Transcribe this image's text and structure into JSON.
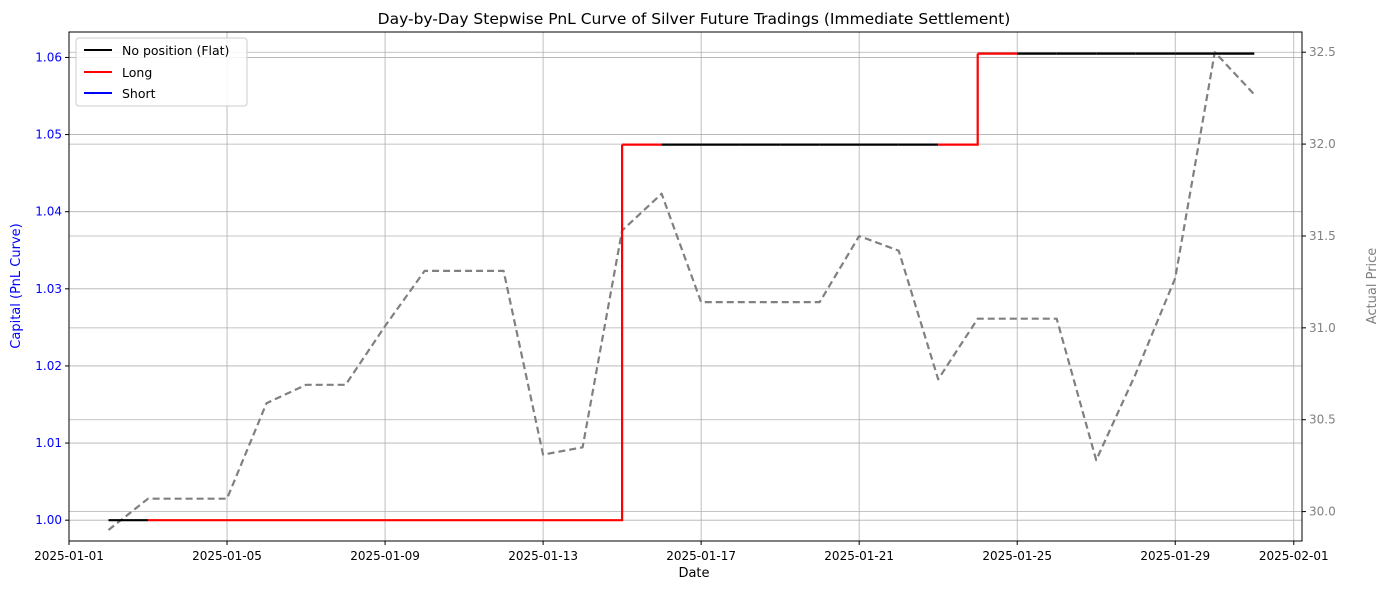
{
  "chart_data": {
    "type": "line",
    "title": "Day-by-Day Stepwise PnL Curve of Silver Future Tradings (Immediate Settlement)",
    "xlabel": "Date",
    "ylabel_left": "Capital (PnL Curve)",
    "ylabel_right": "Actual Price",
    "x_ticks": [
      "2025-01-01",
      "2025-01-05",
      "2025-01-09",
      "2025-01-13",
      "2025-01-17",
      "2025-01-21",
      "2025-01-25",
      "2025-01-29",
      "2025-02-01"
    ],
    "y_left_ticks": [
      1.0,
      1.01,
      1.02,
      1.03,
      1.04,
      1.05,
      1.06
    ],
    "y_left_tick_labels": [
      "1.00",
      "1.01",
      "1.02",
      "1.03",
      "1.04",
      "1.05",
      "1.06"
    ],
    "y_right_ticks": [
      30.0,
      30.5,
      31.0,
      31.5,
      32.0,
      32.5
    ],
    "y_right_tick_labels": [
      "30.0",
      "30.5",
      "31.0",
      "31.5",
      "32.0",
      "32.5"
    ],
    "x_range": [
      "2025-01-01T00:00",
      "2025-02-01T05:00"
    ],
    "ylim_left": [
      0.9973,
      1.0633
    ],
    "ylim_right": [
      29.84,
      32.61
    ],
    "grid": true,
    "legend_position": "top-left",
    "legend": [
      {
        "label": "No position (Flat)",
        "color": "#000000"
      },
      {
        "label": "Long",
        "color": "#ff0000"
      },
      {
        "label": "Short",
        "color": "#0000ff"
      }
    ],
    "left_axis_color": "#0000ff",
    "right_axis_color": "#808080",
    "pnl_dates": [
      "2025-01-02",
      "2025-01-03",
      "2025-01-04",
      "2025-01-05",
      "2025-01-06",
      "2025-01-07",
      "2025-01-08",
      "2025-01-09",
      "2025-01-10",
      "2025-01-11",
      "2025-01-12",
      "2025-01-13",
      "2025-01-14",
      "2025-01-15",
      "2025-01-16",
      "2025-01-17",
      "2025-01-18",
      "2025-01-19",
      "2025-01-20",
      "2025-01-21",
      "2025-01-22",
      "2025-01-23",
      "2025-01-24",
      "2025-01-25",
      "2025-01-26",
      "2025-01-27",
      "2025-01-28",
      "2025-01-29",
      "2025-01-30",
      "2025-01-31"
    ],
    "pnl_values": [
      1.0,
      1.0,
      1.0,
      1.0,
      1.0,
      1.0,
      1.0,
      1.0,
      1.0,
      1.0,
      1.0,
      1.0,
      1.0,
      1.0487,
      1.0487,
      1.0487,
      1.0487,
      1.0487,
      1.0487,
      1.0487,
      1.0487,
      1.0487,
      1.0605,
      1.0605,
      1.0605,
      1.0605,
      1.0605,
      1.0605,
      1.0605,
      1.0605
    ],
    "pnl_position": [
      "flat",
      "long",
      "long",
      "long",
      "long",
      "long",
      "long",
      "long",
      "long",
      "long",
      "long",
      "long",
      "long",
      "long",
      "flat",
      "flat",
      "flat",
      "flat",
      "flat",
      "flat",
      "flat",
      "long",
      "long",
      "flat",
      "flat",
      "flat",
      "flat",
      "flat",
      "flat",
      "flat"
    ],
    "price_dates": [
      "2025-01-02",
      "2025-01-03",
      "2025-01-04",
      "2025-01-05",
      "2025-01-06",
      "2025-01-07",
      "2025-01-08",
      "2025-01-09",
      "2025-01-10",
      "2025-01-11",
      "2025-01-12",
      "2025-01-13",
      "2025-01-14",
      "2025-01-15",
      "2025-01-16",
      "2025-01-17",
      "2025-01-18",
      "2025-01-19",
      "2025-01-20",
      "2025-01-21",
      "2025-01-22",
      "2025-01-23",
      "2025-01-24",
      "2025-01-25",
      "2025-01-26",
      "2025-01-27",
      "2025-01-28",
      "2025-01-29",
      "2025-01-30",
      "2025-01-31"
    ],
    "price_values": [
      29.9,
      30.07,
      30.07,
      30.07,
      30.59,
      30.69,
      30.69,
      31.01,
      31.31,
      31.31,
      31.31,
      30.31,
      30.35,
      31.53,
      31.73,
      31.14,
      31.14,
      31.14,
      31.14,
      31.5,
      31.42,
      30.72,
      31.05,
      31.05,
      31.05,
      30.28,
      30.75,
      31.27,
      32.5,
      32.27
    ]
  }
}
